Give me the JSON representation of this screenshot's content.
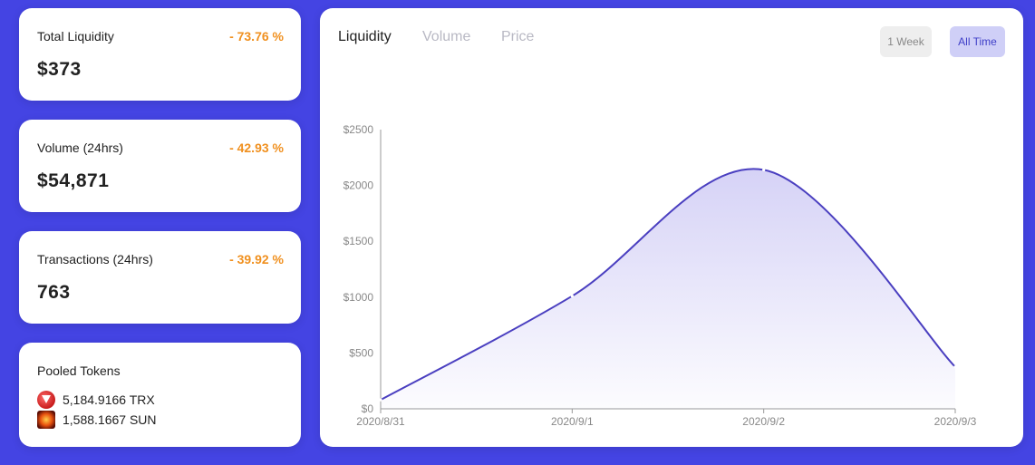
{
  "stats": [
    {
      "label": "Total Liquidity",
      "change": "- 73.76 %",
      "value": "$373"
    },
    {
      "label": "Volume (24hrs)",
      "change": "- 42.93 %",
      "value": "$54,871"
    },
    {
      "label": "Transactions (24hrs)",
      "change": "- 39.92 %",
      "value": "763"
    }
  ],
  "pooled": {
    "label": "Pooled Tokens",
    "tokens": [
      {
        "amount": "5,184.9166 TRX",
        "icon": "trx-icon"
      },
      {
        "amount": "1,588.1667 SUN",
        "icon": "sun-icon"
      }
    ]
  },
  "tabs": [
    "Liquidity",
    "Volume",
    "Price"
  ],
  "active_tab": "Liquidity",
  "ranges": {
    "week": "1 Week",
    "all": "All Time",
    "active": "All Time"
  },
  "colors": {
    "accent": "#4444e3",
    "line": "#4a3fc0",
    "change": "#f0901f"
  },
  "chart_data": {
    "type": "area",
    "x": [
      "2020/8/31",
      "2020/9/1",
      "2020/9/2",
      "2020/9/3"
    ],
    "values": [
      80,
      1010,
      2140,
      375
    ],
    "ylim": [
      0,
      2500
    ],
    "yticks": [
      "$0",
      "$500",
      "$1000",
      "$1500",
      "$2000",
      "$2500"
    ],
    "grid": false
  }
}
